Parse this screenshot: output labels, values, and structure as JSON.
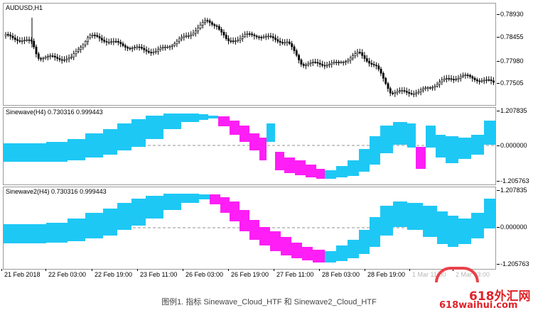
{
  "panes": {
    "price": {
      "label": "AUDUSD,H1",
      "y_ticks": [
        "0.78930",
        "0.78455",
        "0.77980",
        "0.77505"
      ]
    },
    "sinewave1": {
      "label": "Sinewave(H4) 0.730316 0.999443",
      "y_ticks": [
        "1.207835",
        "0.000000",
        "-1.205763"
      ]
    },
    "sinewave2": {
      "label": "Sinewave2(H4) 0.730316 0.999443",
      "y_ticks": [
        "1.207835",
        "0.000000",
        "-1.205763"
      ]
    }
  },
  "x_ticks": [
    "21 Feb 2018",
    "22 Feb 03:00",
    "22 Feb 19:00",
    "23 Feb 11:00",
    "26 Feb 03:00",
    "26 Feb 19:00",
    "27 Feb 11:00",
    "28 Feb 03:00",
    "28 Feb 19:00",
    "1 Mar 11:00",
    "2 Mar 03:00"
  ],
  "caption": "图例1. 指标 Sinewave_Cloud_HTF 和 Sinewave2_Cloud_HTF",
  "watermark": {
    "line1": "618外汇网",
    "line2": "618waihui.com"
  },
  "colors": {
    "cloud_up": "#1ec8f5",
    "cloud_down": "#ff1ef5",
    "candle": "#000000",
    "zero_line": "#909090"
  }
}
